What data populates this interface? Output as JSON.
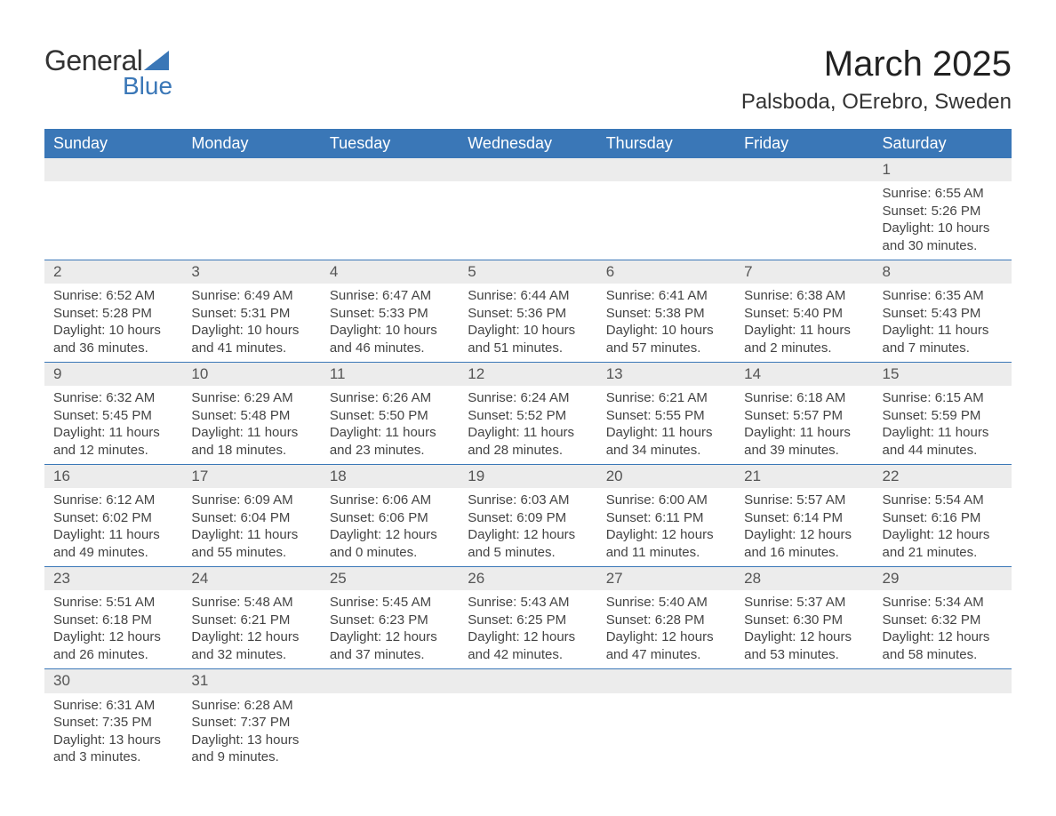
{
  "logo": {
    "text_general": "General",
    "text_blue": "Blue",
    "triangle_color": "#3a77b7"
  },
  "title": {
    "month": "March 2025",
    "location": "Palsboda, OErebro, Sweden"
  },
  "colors": {
    "header_bg": "#3a77b7",
    "header_text": "#ffffff",
    "day_bg": "#ececec",
    "row_border": "#3a77b7",
    "body_text": "#444444",
    "background": "#ffffff"
  },
  "typography": {
    "title_fontsize": 40,
    "location_fontsize": 24,
    "header_fontsize": 18,
    "day_fontsize": 17,
    "body_fontsize": 15,
    "font_family": "Arial"
  },
  "days_of_week": [
    "Sunday",
    "Monday",
    "Tuesday",
    "Wednesday",
    "Thursday",
    "Friday",
    "Saturday"
  ],
  "weeks": [
    [
      {
        "day": "",
        "sunrise": "",
        "sunset": "",
        "daylight1": "",
        "daylight2": ""
      },
      {
        "day": "",
        "sunrise": "",
        "sunset": "",
        "daylight1": "",
        "daylight2": ""
      },
      {
        "day": "",
        "sunrise": "",
        "sunset": "",
        "daylight1": "",
        "daylight2": ""
      },
      {
        "day": "",
        "sunrise": "",
        "sunset": "",
        "daylight1": "",
        "daylight2": ""
      },
      {
        "day": "",
        "sunrise": "",
        "sunset": "",
        "daylight1": "",
        "daylight2": ""
      },
      {
        "day": "",
        "sunrise": "",
        "sunset": "",
        "daylight1": "",
        "daylight2": ""
      },
      {
        "day": "1",
        "sunrise": "Sunrise: 6:55 AM",
        "sunset": "Sunset: 5:26 PM",
        "daylight1": "Daylight: 10 hours",
        "daylight2": "and 30 minutes."
      }
    ],
    [
      {
        "day": "2",
        "sunrise": "Sunrise: 6:52 AM",
        "sunset": "Sunset: 5:28 PM",
        "daylight1": "Daylight: 10 hours",
        "daylight2": "and 36 minutes."
      },
      {
        "day": "3",
        "sunrise": "Sunrise: 6:49 AM",
        "sunset": "Sunset: 5:31 PM",
        "daylight1": "Daylight: 10 hours",
        "daylight2": "and 41 minutes."
      },
      {
        "day": "4",
        "sunrise": "Sunrise: 6:47 AM",
        "sunset": "Sunset: 5:33 PM",
        "daylight1": "Daylight: 10 hours",
        "daylight2": "and 46 minutes."
      },
      {
        "day": "5",
        "sunrise": "Sunrise: 6:44 AM",
        "sunset": "Sunset: 5:36 PM",
        "daylight1": "Daylight: 10 hours",
        "daylight2": "and 51 minutes."
      },
      {
        "day": "6",
        "sunrise": "Sunrise: 6:41 AM",
        "sunset": "Sunset: 5:38 PM",
        "daylight1": "Daylight: 10 hours",
        "daylight2": "and 57 minutes."
      },
      {
        "day": "7",
        "sunrise": "Sunrise: 6:38 AM",
        "sunset": "Sunset: 5:40 PM",
        "daylight1": "Daylight: 11 hours",
        "daylight2": "and 2 minutes."
      },
      {
        "day": "8",
        "sunrise": "Sunrise: 6:35 AM",
        "sunset": "Sunset: 5:43 PM",
        "daylight1": "Daylight: 11 hours",
        "daylight2": "and 7 minutes."
      }
    ],
    [
      {
        "day": "9",
        "sunrise": "Sunrise: 6:32 AM",
        "sunset": "Sunset: 5:45 PM",
        "daylight1": "Daylight: 11 hours",
        "daylight2": "and 12 minutes."
      },
      {
        "day": "10",
        "sunrise": "Sunrise: 6:29 AM",
        "sunset": "Sunset: 5:48 PM",
        "daylight1": "Daylight: 11 hours",
        "daylight2": "and 18 minutes."
      },
      {
        "day": "11",
        "sunrise": "Sunrise: 6:26 AM",
        "sunset": "Sunset: 5:50 PM",
        "daylight1": "Daylight: 11 hours",
        "daylight2": "and 23 minutes."
      },
      {
        "day": "12",
        "sunrise": "Sunrise: 6:24 AM",
        "sunset": "Sunset: 5:52 PM",
        "daylight1": "Daylight: 11 hours",
        "daylight2": "and 28 minutes."
      },
      {
        "day": "13",
        "sunrise": "Sunrise: 6:21 AM",
        "sunset": "Sunset: 5:55 PM",
        "daylight1": "Daylight: 11 hours",
        "daylight2": "and 34 minutes."
      },
      {
        "day": "14",
        "sunrise": "Sunrise: 6:18 AM",
        "sunset": "Sunset: 5:57 PM",
        "daylight1": "Daylight: 11 hours",
        "daylight2": "and 39 minutes."
      },
      {
        "day": "15",
        "sunrise": "Sunrise: 6:15 AM",
        "sunset": "Sunset: 5:59 PM",
        "daylight1": "Daylight: 11 hours",
        "daylight2": "and 44 minutes."
      }
    ],
    [
      {
        "day": "16",
        "sunrise": "Sunrise: 6:12 AM",
        "sunset": "Sunset: 6:02 PM",
        "daylight1": "Daylight: 11 hours",
        "daylight2": "and 49 minutes."
      },
      {
        "day": "17",
        "sunrise": "Sunrise: 6:09 AM",
        "sunset": "Sunset: 6:04 PM",
        "daylight1": "Daylight: 11 hours",
        "daylight2": "and 55 minutes."
      },
      {
        "day": "18",
        "sunrise": "Sunrise: 6:06 AM",
        "sunset": "Sunset: 6:06 PM",
        "daylight1": "Daylight: 12 hours",
        "daylight2": "and 0 minutes."
      },
      {
        "day": "19",
        "sunrise": "Sunrise: 6:03 AM",
        "sunset": "Sunset: 6:09 PM",
        "daylight1": "Daylight: 12 hours",
        "daylight2": "and 5 minutes."
      },
      {
        "day": "20",
        "sunrise": "Sunrise: 6:00 AM",
        "sunset": "Sunset: 6:11 PM",
        "daylight1": "Daylight: 12 hours",
        "daylight2": "and 11 minutes."
      },
      {
        "day": "21",
        "sunrise": "Sunrise: 5:57 AM",
        "sunset": "Sunset: 6:14 PM",
        "daylight1": "Daylight: 12 hours",
        "daylight2": "and 16 minutes."
      },
      {
        "day": "22",
        "sunrise": "Sunrise: 5:54 AM",
        "sunset": "Sunset: 6:16 PM",
        "daylight1": "Daylight: 12 hours",
        "daylight2": "and 21 minutes."
      }
    ],
    [
      {
        "day": "23",
        "sunrise": "Sunrise: 5:51 AM",
        "sunset": "Sunset: 6:18 PM",
        "daylight1": "Daylight: 12 hours",
        "daylight2": "and 26 minutes."
      },
      {
        "day": "24",
        "sunrise": "Sunrise: 5:48 AM",
        "sunset": "Sunset: 6:21 PM",
        "daylight1": "Daylight: 12 hours",
        "daylight2": "and 32 minutes."
      },
      {
        "day": "25",
        "sunrise": "Sunrise: 5:45 AM",
        "sunset": "Sunset: 6:23 PM",
        "daylight1": "Daylight: 12 hours",
        "daylight2": "and 37 minutes."
      },
      {
        "day": "26",
        "sunrise": "Sunrise: 5:43 AM",
        "sunset": "Sunset: 6:25 PM",
        "daylight1": "Daylight: 12 hours",
        "daylight2": "and 42 minutes."
      },
      {
        "day": "27",
        "sunrise": "Sunrise: 5:40 AM",
        "sunset": "Sunset: 6:28 PM",
        "daylight1": "Daylight: 12 hours",
        "daylight2": "and 47 minutes."
      },
      {
        "day": "28",
        "sunrise": "Sunrise: 5:37 AM",
        "sunset": "Sunset: 6:30 PM",
        "daylight1": "Daylight: 12 hours",
        "daylight2": "and 53 minutes."
      },
      {
        "day": "29",
        "sunrise": "Sunrise: 5:34 AM",
        "sunset": "Sunset: 6:32 PM",
        "daylight1": "Daylight: 12 hours",
        "daylight2": "and 58 minutes."
      }
    ],
    [
      {
        "day": "30",
        "sunrise": "Sunrise: 6:31 AM",
        "sunset": "Sunset: 7:35 PM",
        "daylight1": "Daylight: 13 hours",
        "daylight2": "and 3 minutes."
      },
      {
        "day": "31",
        "sunrise": "Sunrise: 6:28 AM",
        "sunset": "Sunset: 7:37 PM",
        "daylight1": "Daylight: 13 hours",
        "daylight2": "and 9 minutes."
      },
      {
        "day": "",
        "sunrise": "",
        "sunset": "",
        "daylight1": "",
        "daylight2": ""
      },
      {
        "day": "",
        "sunrise": "",
        "sunset": "",
        "daylight1": "",
        "daylight2": ""
      },
      {
        "day": "",
        "sunrise": "",
        "sunset": "",
        "daylight1": "",
        "daylight2": ""
      },
      {
        "day": "",
        "sunrise": "",
        "sunset": "",
        "daylight1": "",
        "daylight2": ""
      },
      {
        "day": "",
        "sunrise": "",
        "sunset": "",
        "daylight1": "",
        "daylight2": ""
      }
    ]
  ]
}
